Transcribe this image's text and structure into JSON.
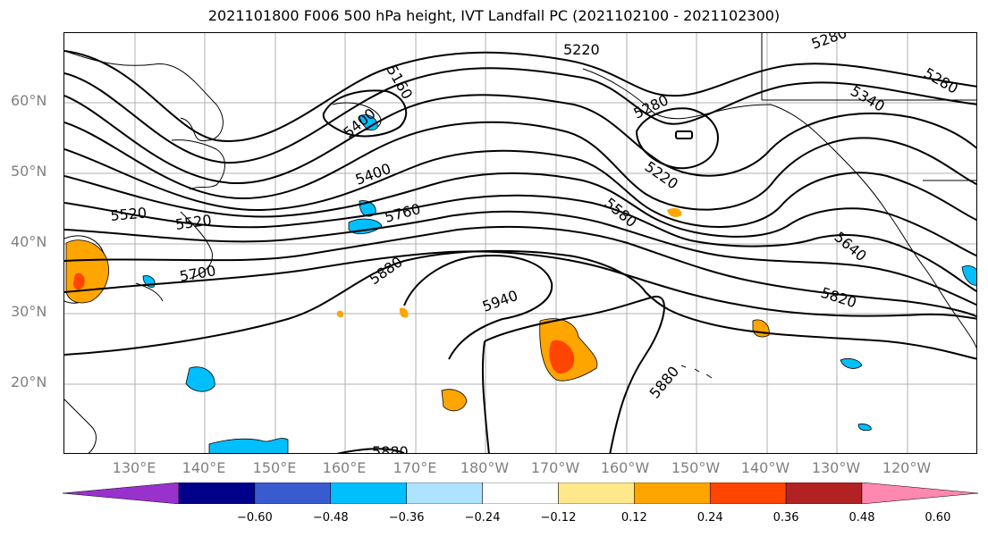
{
  "title": "2021101800 F006 500 hPa height, IVT Landfall PC (2021102100 - 2021102300)",
  "lat_labels": [
    "60°N",
    "50°N",
    "40°N",
    "30°N",
    "20°N"
  ],
  "lon_labels": [
    "130°E",
    "140°E",
    "150°E",
    "160°E",
    "170°E",
    "180°W",
    "170°W",
    "160°W",
    "150°W",
    "140°W",
    "130°W",
    "120°W"
  ],
  "contour_labels": [
    "5220",
    "5280",
    "5340",
    "5280",
    "5160",
    "5400",
    "5280",
    "5220",
    "5400",
    "5520",
    "5580",
    "5760",
    "5640",
    "5880",
    "5940",
    "5820",
    "5700",
    "5880",
    "5880"
  ],
  "colorbar": {
    "colors": [
      "#9932cc",
      "#00008b",
      "#3a5bd0",
      "#00bfff",
      "#aee3ff",
      "#ffffff",
      "#ffe88a",
      "#ffa500",
      "#ff4500",
      "#b22222",
      "#ff88b0"
    ],
    "ticks": [
      "−0.60",
      "−0.48",
      "−0.36",
      "−0.24",
      "−0.12",
      "0.12",
      "0.24",
      "0.36",
      "0.48",
      "0.60"
    ]
  }
}
